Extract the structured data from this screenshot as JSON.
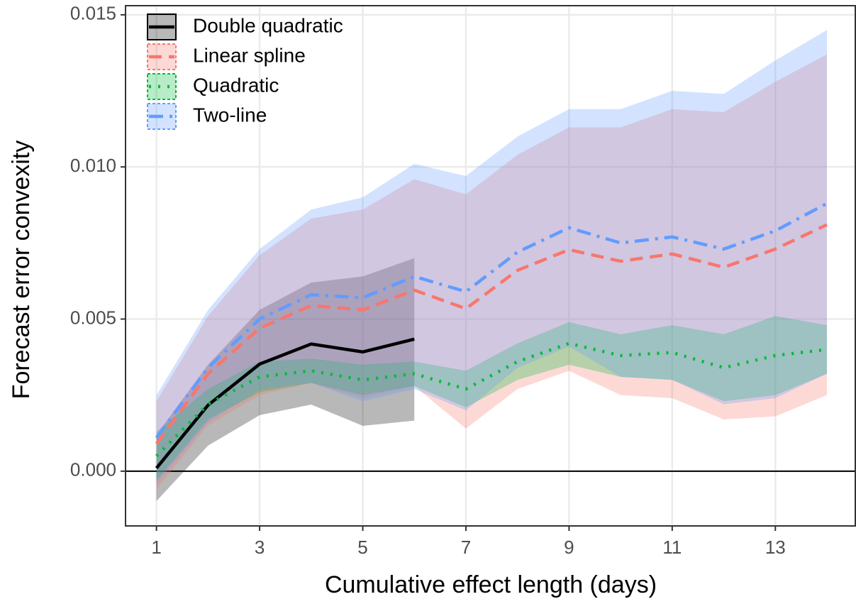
{
  "chart_data": {
    "type": "line",
    "x_label": "Cumulative effect length (days)",
    "y_label": "Forecast error convexity",
    "xlim": [
      0.4,
      14.55
    ],
    "xticks": [
      1,
      3,
      5,
      7,
      9,
      11,
      13
    ],
    "ylim": [
      -0.0018,
      0.0153
    ],
    "yticks": [
      {
        "value": 0,
        "label": "0.000"
      },
      {
        "value": 0.005,
        "label": "0.005"
      },
      {
        "value": 0.01,
        "label": "0.010"
      },
      {
        "value": 0.015,
        "label": "0.015"
      }
    ],
    "hline": 0,
    "grid": true,
    "legend": "top-left",
    "series": [
      {
        "name": "Double quadratic",
        "color": "#000000",
        "linetype": "solid",
        "x": [
          1,
          2,
          3,
          4,
          5,
          6
        ],
        "values": [
          0.0001,
          0.00217,
          0.00352,
          0.00418,
          0.00392,
          0.00434
        ],
        "lower": [
          -0.00098,
          0.00084,
          0.00184,
          0.00219,
          0.00149,
          0.00166
        ],
        "upper": [
          0.0012,
          0.0035,
          0.0053,
          0.0062,
          0.0064,
          0.007
        ]
      },
      {
        "name": "Linear spline",
        "color": "#F8766D",
        "linetype": "dashed",
        "x": [
          1,
          2,
          3,
          4,
          5,
          6,
          7,
          8,
          9,
          10,
          11,
          12,
          13,
          14
        ],
        "values": [
          0.0009,
          0.0032,
          0.0047,
          0.00544,
          0.0053,
          0.00595,
          0.00534,
          0.0066,
          0.00728,
          0.0069,
          0.00714,
          0.0067,
          0.0073,
          0.0081
        ],
        "lower": [
          -0.0006,
          0.0015,
          0.0025,
          0.0029,
          0.0024,
          0.0028,
          0.0014,
          0.0027,
          0.0033,
          0.0025,
          0.0024,
          0.0017,
          0.0018,
          0.0025
        ],
        "upper": [
          0.0023,
          0.0051,
          0.0071,
          0.0083,
          0.0086,
          0.0096,
          0.0091,
          0.0104,
          0.0113,
          0.0113,
          0.0119,
          0.0118,
          0.0128,
          0.0137
        ]
      },
      {
        "name": "Quadratic",
        "color": "#00BA38",
        "linetype": "dotted",
        "x": [
          1,
          2,
          3,
          4,
          5,
          6,
          7,
          8,
          9,
          10,
          11,
          12,
          13,
          14
        ],
        "values": [
          0.0005,
          0.0022,
          0.0031,
          0.0033,
          0.003,
          0.0032,
          0.0027,
          0.0036,
          0.0042,
          0.0038,
          0.0039,
          0.0034,
          0.0038,
          0.004
        ],
        "lower": [
          -0.0003,
          0.0017,
          0.0026,
          0.0029,
          0.0025,
          0.0028,
          0.0021,
          0.003,
          0.0035,
          0.0031,
          0.003,
          0.0023,
          0.0025,
          0.0032
        ],
        "upper": [
          0.0013,
          0.0027,
          0.0036,
          0.0037,
          0.0035,
          0.0036,
          0.0033,
          0.0042,
          0.0049,
          0.0045,
          0.0048,
          0.0045,
          0.0051,
          0.0048
        ]
      },
      {
        "name": "Two-line",
        "color": "#619CFF",
        "linetype": "dotdash",
        "x": [
          1,
          2,
          3,
          4,
          5,
          6,
          7,
          8,
          9,
          10,
          11,
          12,
          13,
          14
        ],
        "values": [
          0.0011,
          0.0034,
          0.005,
          0.0058,
          0.0057,
          0.0064,
          0.0059,
          0.0072,
          0.008,
          0.0075,
          0.0077,
          0.0073,
          0.0079,
          0.0088
        ],
        "lower": [
          -0.0004,
          0.0016,
          0.0027,
          0.0029,
          0.0023,
          0.0027,
          0.002,
          0.0034,
          0.0041,
          0.0031,
          0.003,
          0.0022,
          0.0024,
          0.0032
        ],
        "upper": [
          0.0025,
          0.0053,
          0.0073,
          0.0086,
          0.009,
          0.0101,
          0.0097,
          0.011,
          0.0119,
          0.0119,
          0.0125,
          0.0124,
          0.0135,
          0.0145
        ]
      }
    ]
  }
}
